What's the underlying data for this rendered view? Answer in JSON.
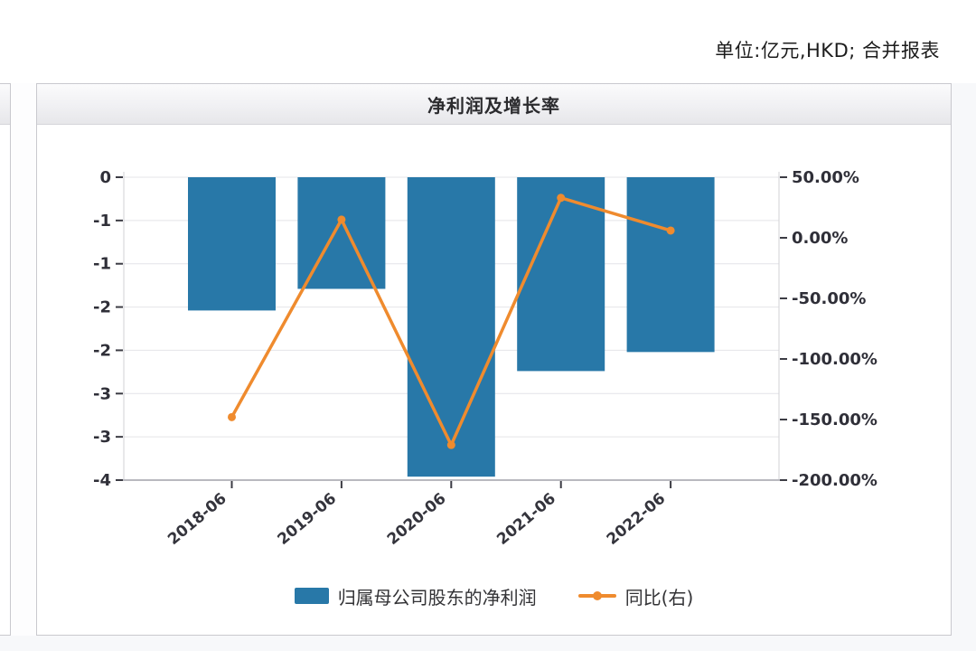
{
  "header": {
    "unit_note": "单位:亿元,HKD; 合并报表"
  },
  "panel": {
    "title": "净利润及增长率"
  },
  "chart_data": {
    "type": "bar",
    "title": "净利润及增长率",
    "categories": [
      "2018-06",
      "2019-06",
      "2020-06",
      "2021-06",
      "2022-06"
    ],
    "series": [
      {
        "name": "归属母公司股东的净利润",
        "type": "bar",
        "axis": "left",
        "color": "#2878a8",
        "values": [
          -1.54,
          -1.29,
          -3.46,
          -2.24,
          -2.02
        ]
      },
      {
        "name": "同比(右)",
        "type": "line",
        "axis": "right",
        "color": "#ef8b2e",
        "values": [
          -148,
          15,
          -171,
          33,
          6
        ]
      }
    ],
    "left_axis": {
      "max": 0,
      "min": -3.5,
      "tick_labels": [
        "0",
        "-1",
        "-1",
        "-2",
        "-2",
        "-3",
        "-3",
        "-4"
      ]
    },
    "right_axis": {
      "max": 50,
      "min": -200,
      "tick_labels": [
        "50.00%",
        "0.00%",
        "-50.00%",
        "-100.00%",
        "-150.00%",
        "-200.00%"
      ]
    },
    "grid": true,
    "legend_position": "bottom"
  }
}
